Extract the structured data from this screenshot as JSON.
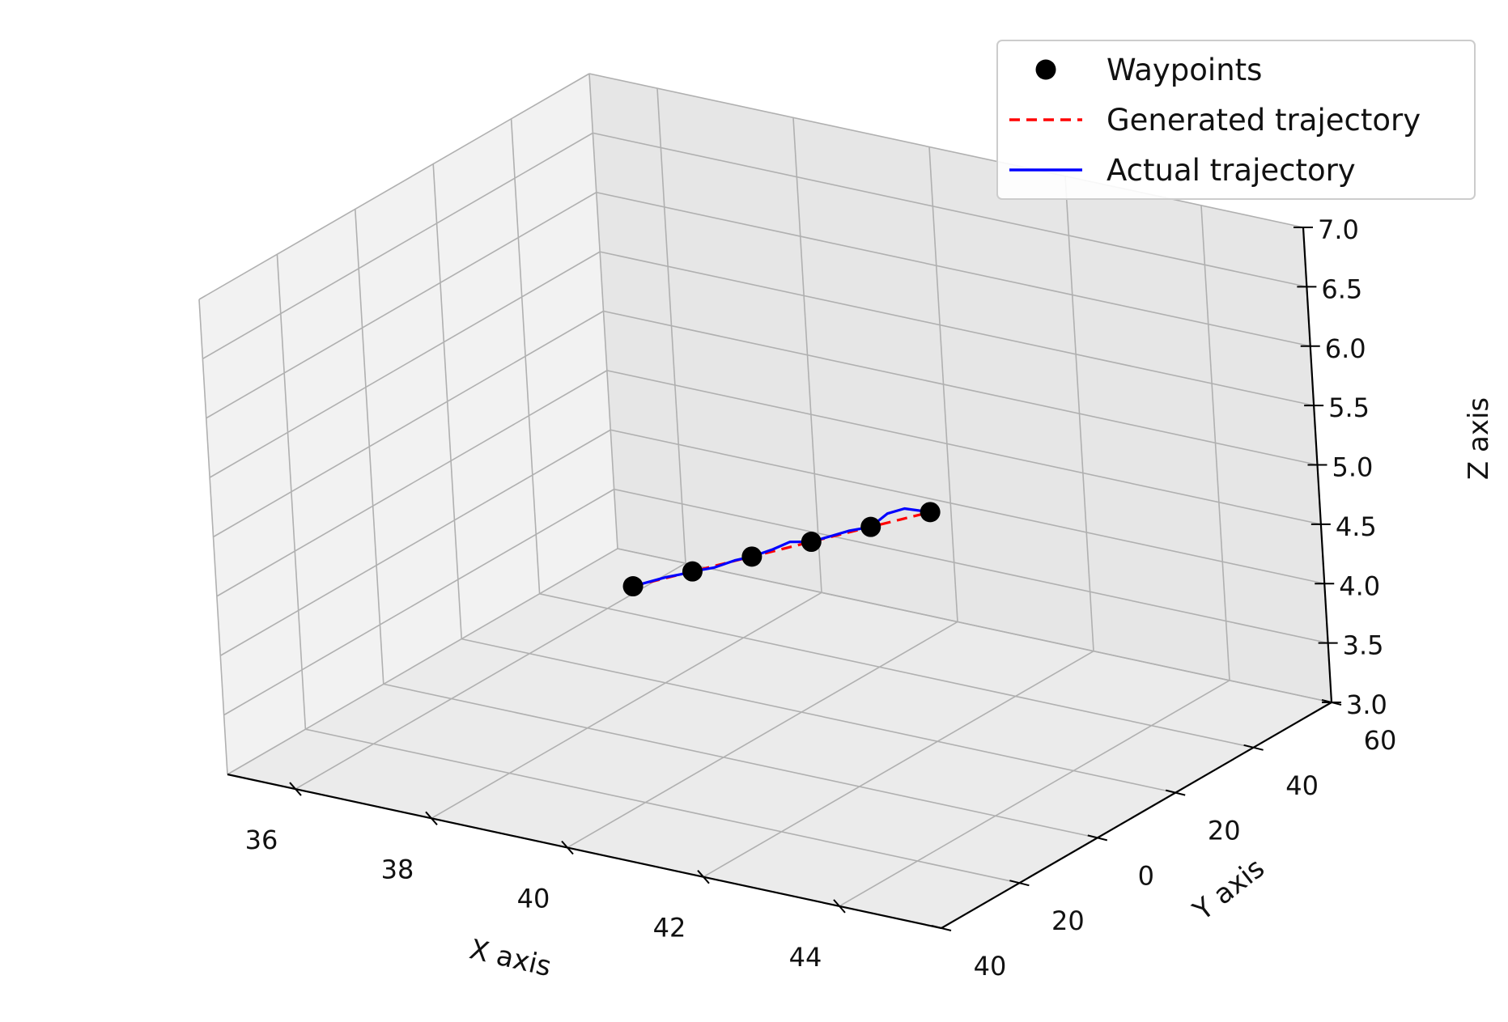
{
  "chart_data": {
    "type": "line",
    "projection": "3d",
    "title": "",
    "xlabel": "X axis",
    "ylabel": "Y axis",
    "zlabel": "Z axis",
    "xlim": [
      35,
      45.5
    ],
    "ylim": [
      -60,
      40
    ],
    "zlim": [
      3.0,
      7.0
    ],
    "x_ticks": [
      {
        "value": 36,
        "label": "36"
      },
      {
        "value": 38,
        "label": "38"
      },
      {
        "value": 40,
        "label": "40"
      },
      {
        "value": 42,
        "label": "42"
      },
      {
        "value": 44,
        "label": "44"
      }
    ],
    "y_ticks": [
      {
        "value": -60,
        "label": "60"
      },
      {
        "value": -40,
        "label": "40"
      },
      {
        "value": -20,
        "label": "20"
      },
      {
        "value": 0,
        "label": "0"
      },
      {
        "value": 20,
        "label": "20"
      },
      {
        "value": 40,
        "label": "40"
      }
    ],
    "z_ticks": [
      {
        "value": 3.0,
        "label": "3.0"
      },
      {
        "value": 3.5,
        "label": "3.5"
      },
      {
        "value": 4.0,
        "label": "4.0"
      },
      {
        "value": 4.5,
        "label": "4.5"
      },
      {
        "value": 5.0,
        "label": "5.0"
      },
      {
        "value": 5.5,
        "label": "5.5"
      },
      {
        "value": 6.0,
        "label": "6.0"
      },
      {
        "value": 6.5,
        "label": "6.5"
      },
      {
        "value": 7.0,
        "label": "7.0"
      }
    ],
    "grid": true,
    "legend_position": "top-right",
    "series": [
      {
        "name": "Waypoints",
        "kind": "markers",
        "color": "#000000",
        "points": [
          {
            "x": 37.0,
            "y": -30,
            "z": 3.5
          },
          {
            "x": 38.5,
            "y": -20,
            "z": 4.0
          },
          {
            "x": 40.0,
            "y": -10,
            "z": 4.5
          },
          {
            "x": 41.5,
            "y": 0,
            "z": 5.0
          },
          {
            "x": 43.0,
            "y": 10,
            "z": 5.5
          },
          {
            "x": 44.5,
            "y": 20,
            "z": 6.0
          }
        ]
      },
      {
        "name": "Generated trajectory",
        "kind": "dashed-line",
        "color": "#ff0000",
        "points": [
          {
            "x": 37.0,
            "y": -30,
            "z": 3.5
          },
          {
            "x": 37.75,
            "y": -25,
            "z": 3.75
          },
          {
            "x": 38.5,
            "y": -20,
            "z": 4.0
          },
          {
            "x": 39.25,
            "y": -15,
            "z": 4.25
          },
          {
            "x": 40.0,
            "y": -10,
            "z": 4.5
          },
          {
            "x": 40.75,
            "y": -5,
            "z": 4.75
          },
          {
            "x": 41.5,
            "y": 0,
            "z": 5.0
          },
          {
            "x": 42.25,
            "y": 5,
            "z": 5.25
          },
          {
            "x": 43.0,
            "y": 10,
            "z": 5.5
          },
          {
            "x": 43.75,
            "y": 15,
            "z": 5.75
          },
          {
            "x": 44.5,
            "y": 20,
            "z": 6.0
          }
        ]
      },
      {
        "name": "Actual trajectory",
        "kind": "solid-line",
        "color": "#0000ff",
        "points": [
          {
            "x": 37.0,
            "y": -30,
            "z": 3.5
          },
          {
            "x": 37.4,
            "y": -27,
            "z": 3.64
          },
          {
            "x": 37.8,
            "y": -25,
            "z": 3.77
          },
          {
            "x": 38.2,
            "y": -22,
            "z": 3.9
          },
          {
            "x": 38.5,
            "y": -20,
            "z": 4.0
          },
          {
            "x": 39.0,
            "y": -17,
            "z": 4.15
          },
          {
            "x": 39.5,
            "y": -14,
            "z": 4.33
          },
          {
            "x": 40.0,
            "y": -10,
            "z": 4.5
          },
          {
            "x": 40.5,
            "y": -7,
            "z": 4.68
          },
          {
            "x": 41.0,
            "y": -3,
            "z": 4.88
          },
          {
            "x": 41.5,
            "y": 0,
            "z": 5.0
          },
          {
            "x": 42.0,
            "y": 3,
            "z": 5.17
          },
          {
            "x": 42.5,
            "y": 7,
            "z": 5.35
          },
          {
            "x": 43.0,
            "y": 10,
            "z": 5.5
          },
          {
            "x": 43.5,
            "y": 14,
            "z": 5.75
          },
          {
            "x": 44.0,
            "y": 18,
            "z": 5.93
          },
          {
            "x": 44.5,
            "y": 20,
            "z": 6.0
          }
        ]
      }
    ]
  }
}
